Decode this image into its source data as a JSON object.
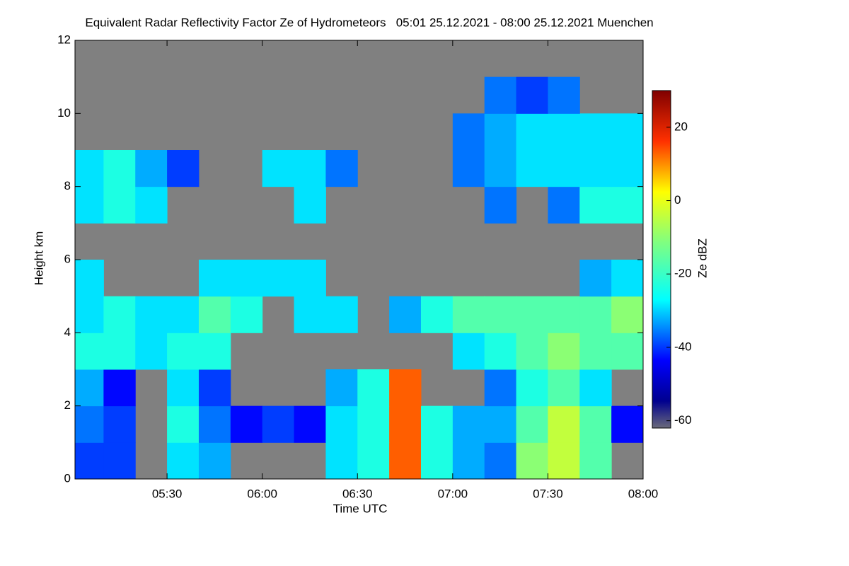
{
  "chart_data": {
    "type": "heatmap",
    "title": "Equivalent Radar Reflectivity Factor Ze of Hydrometeors   05:01 25.12.2021 - 08:00 25.12.2021 Muenchen",
    "x_label": "Time UTC",
    "y_label": "Height km",
    "colorbar_label": "Ze dBZ",
    "colormap": "jet",
    "background": "#808080",
    "xlim": [
      301,
      480
    ],
    "xticks": [
      {
        "value": 330,
        "label": "05:30"
      },
      {
        "value": 360,
        "label": "06:00"
      },
      {
        "value": 390,
        "label": "06:30"
      },
      {
        "value": 420,
        "label": "07:00"
      },
      {
        "value": 450,
        "label": "07:30"
      },
      {
        "value": 480,
        "label": "08:00"
      }
    ],
    "ylim": [
      0,
      12
    ],
    "yticks": [
      0,
      2,
      4,
      6,
      8,
      10,
      12
    ],
    "zlim": [
      -62,
      30
    ],
    "zticks": [
      20,
      0,
      -20,
      -40,
      -60
    ],
    "x_edges": [
      301,
      310,
      320,
      330,
      340,
      350,
      360,
      370,
      380,
      390,
      400,
      410,
      420,
      430,
      440,
      450,
      460,
      470,
      480
    ],
    "y_edges": [
      0,
      1,
      2,
      3,
      4,
      5,
      6,
      7,
      8,
      9,
      10,
      11,
      12
    ],
    "z": [
      [
        -45,
        -45,
        null,
        -30,
        -35,
        null,
        null,
        null,
        -30,
        -25,
        10,
        -25,
        -35,
        -40,
        -15,
        -10,
        -20,
        null
      ],
      [
        -40,
        -45,
        null,
        -25,
        -40,
        -50,
        -45,
        -50,
        -30,
        -25,
        10,
        -25,
        -35,
        -35,
        -20,
        -10,
        -20,
        -50
      ],
      [
        -35,
        -50,
        null,
        -30,
        -45,
        null,
        null,
        null,
        -35,
        -25,
        10,
        null,
        null,
        -40,
        -25,
        -20,
        -30,
        null
      ],
      [
        -25,
        -25,
        -30,
        -25,
        -25,
        null,
        null,
        null,
        null,
        null,
        null,
        null,
        -30,
        -25,
        -20,
        -15,
        -20,
        -20
      ],
      [
        -30,
        -25,
        -30,
        -30,
        -20,
        -25,
        null,
        -30,
        -30,
        null,
        -35,
        -25,
        -20,
        -20,
        -20,
        -20,
        -20,
        -15
      ],
      [
        -30,
        null,
        null,
        null,
        -30,
        -30,
        -30,
        -30,
        null,
        null,
        null,
        null,
        null,
        null,
        null,
        null,
        -35,
        -30
      ],
      [
        null,
        null,
        null,
        null,
        null,
        null,
        null,
        null,
        null,
        null,
        null,
        null,
        null,
        null,
        null,
        null,
        null,
        null
      ],
      [
        -30,
        -25,
        -30,
        null,
        null,
        null,
        null,
        -30,
        null,
        null,
        null,
        null,
        null,
        -40,
        null,
        -40,
        -25,
        -25
      ],
      [
        -30,
        -25,
        -35,
        -45,
        null,
        null,
        -30,
        -30,
        -40,
        null,
        null,
        null,
        -40,
        -35,
        -30,
        -30,
        -30,
        -30
      ],
      [
        null,
        null,
        null,
        null,
        null,
        null,
        null,
        null,
        null,
        null,
        null,
        null,
        -40,
        -35,
        -30,
        -30,
        -30,
        -30
      ],
      [
        null,
        null,
        null,
        null,
        null,
        null,
        null,
        null,
        null,
        null,
        null,
        null,
        null,
        -40,
        -45,
        -40,
        null,
        null
      ],
      [
        null,
        null,
        null,
        null,
        null,
        null,
        null,
        null,
        null,
        null,
        null,
        null,
        null,
        null,
        null,
        null,
        null,
        null
      ]
    ]
  }
}
